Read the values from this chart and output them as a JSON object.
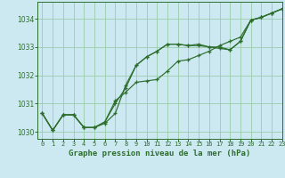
{
  "title": "Graphe pression niveau de la mer (hPa)",
  "bg_color": "#cce8f0",
  "grid_color": "#99ccaa",
  "line_color": "#2d6e2d",
  "marker_color": "#2d6e2d",
  "xlim": [
    -0.5,
    23
  ],
  "ylim": [
    1029.75,
    1034.6
  ],
  "yticks": [
    1030,
    1031,
    1032,
    1033,
    1034
  ],
  "xticks": [
    0,
    1,
    2,
    3,
    4,
    5,
    6,
    7,
    8,
    9,
    10,
    11,
    12,
    13,
    14,
    15,
    16,
    17,
    18,
    19,
    20,
    21,
    22,
    23
  ],
  "series1": [
    1030.65,
    1030.05,
    1030.6,
    1030.6,
    1030.15,
    1030.15,
    1030.35,
    1031.0,
    1031.55,
    1032.35,
    1032.65,
    1032.85,
    1033.1,
    1033.1,
    1033.05,
    1033.05,
    1033.0,
    1033.0,
    1032.9,
    1033.2,
    1033.95,
    1034.05,
    1034.2,
    1034.35
  ],
  "series2": [
    1030.65,
    1030.05,
    1030.6,
    1030.6,
    1030.15,
    1030.15,
    1030.35,
    1031.1,
    1031.4,
    1031.75,
    1031.8,
    1031.85,
    1032.15,
    1032.5,
    1032.55,
    1032.7,
    1032.85,
    1033.05,
    1033.2,
    1033.35,
    1033.95,
    1034.05,
    1034.2,
    1034.35
  ],
  "series3": [
    1030.65,
    1030.05,
    1030.6,
    1030.6,
    1030.15,
    1030.15,
    1030.3,
    1030.65,
    1031.65,
    1032.35,
    1032.65,
    1032.85,
    1033.1,
    1033.1,
    1033.05,
    1033.1,
    1033.0,
    1032.95,
    1032.9,
    1033.2,
    1033.95,
    1034.05,
    1034.2,
    1034.35
  ]
}
